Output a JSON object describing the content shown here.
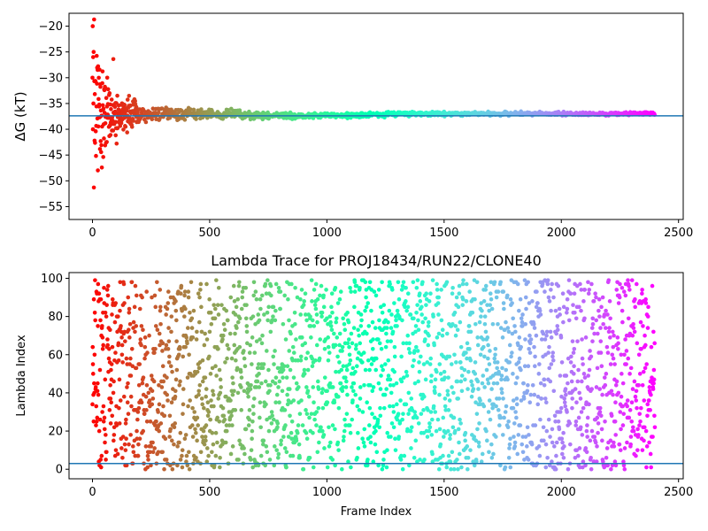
{
  "chart_data": [
    {
      "type": "scatter",
      "title": "",
      "xlabel": "",
      "ylabel": "ΔG (kT)",
      "xlim": [
        -100,
        2520
      ],
      "ylim": [
        -57.5,
        -17.5
      ],
      "xticks": [
        0,
        500,
        1000,
        1500,
        2000,
        2500
      ],
      "yticks": [
        -55,
        -50,
        -45,
        -40,
        -35,
        -30,
        -25,
        -20
      ],
      "colormap": "rainbow (red at frame 0 → violet at frame 2400)",
      "reference_line": {
        "orientation": "horizontal",
        "y": -37.4,
        "color": "#1f77b4"
      },
      "frame_count": 2400,
      "sample_points": [
        {
          "x": 5,
          "y": -30
        },
        {
          "x": 10,
          "y": -20
        },
        {
          "x": 15,
          "y": -40
        },
        {
          "x": 20,
          "y": -26
        },
        {
          "x": 30,
          "y": -25
        },
        {
          "x": 40,
          "y": -51.3
        },
        {
          "x": 48,
          "y": -18.7
        },
        {
          "x": 60,
          "y": -45.5
        },
        {
          "x": 80,
          "y": -28
        },
        {
          "x": 100,
          "y": -44
        },
        {
          "x": 130,
          "y": -33
        },
        {
          "x": 150,
          "y": -43
        },
        {
          "x": 200,
          "y": -34
        },
        {
          "x": 280,
          "y": -34
        },
        {
          "x": 400,
          "y": -38.5
        },
        {
          "x": 500,
          "y": -36.5
        },
        {
          "x": 560,
          "y": -39
        },
        {
          "x": 700,
          "y": -37
        },
        {
          "x": 1000,
          "y": -37.7
        },
        {
          "x": 1240,
          "y": -38.3
        },
        {
          "x": 1430,
          "y": -37
        },
        {
          "x": 1500,
          "y": -37.5
        },
        {
          "x": 1750,
          "y": -37.7
        },
        {
          "x": 2000,
          "y": -37.2
        },
        {
          "x": 2100,
          "y": -37.3
        },
        {
          "x": 2250,
          "y": -37.0
        },
        {
          "x": 2400,
          "y": -37.0
        }
      ]
    },
    {
      "type": "scatter",
      "title": "Lambda Trace for PROJ18434/RUN22/CLONE40",
      "xlabel": "Frame Index",
      "ylabel": "Lambda Index",
      "xlim": [
        -100,
        2520
      ],
      "ylim": [
        -5,
        103
      ],
      "xticks": [
        0,
        500,
        1000,
        1500,
        2000,
        2500
      ],
      "yticks": [
        0,
        20,
        40,
        60,
        80,
        100
      ],
      "colormap": "rainbow (red at frame 0 → violet at frame 2400)",
      "reference_line": {
        "orientation": "horizontal",
        "y": 3,
        "color": "#1f77b4"
      },
      "frame_count": 2400,
      "value_range": [
        0,
        99
      ],
      "distribution": "uniform scatter across lambda 0–99 for every frame"
    }
  ]
}
